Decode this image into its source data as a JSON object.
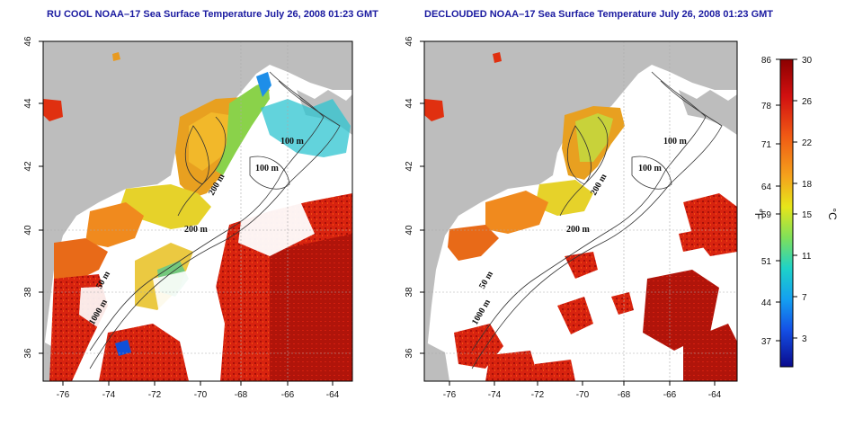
{
  "panels": [
    {
      "title": "RU COOL NOAA–17 Sea Surface Temperature July 26, 2008 01:23 GMT",
      "x_ticks": [
        "-76",
        "-74",
        "-72",
        "-70",
        "-68",
        "-66",
        "-64"
      ],
      "y_ticks": [
        "46",
        "44",
        "42",
        "40",
        "38",
        "36"
      ],
      "contour_labels": [
        "100 m",
        "100 m",
        "200 m",
        "200 m",
        "50 m",
        "1000 m"
      ]
    },
    {
      "title": "DECLOUDED NOAA–17 Sea Surface Temperature July 26, 2008 01:23 GMT",
      "x_ticks": [
        "-76",
        "-74",
        "-72",
        "-70",
        "-68",
        "-66",
        "-64"
      ],
      "y_ticks": [
        "46",
        "44",
        "42",
        "40",
        "38",
        "36"
      ],
      "contour_labels": [
        "100 m",
        "100 m",
        "200 m",
        "200 m",
        "50 m",
        "1000 m"
      ]
    }
  ],
  "colorbar": {
    "fahrenheit_ticks": [
      "86",
      "78",
      "71",
      "64",
      "59",
      "51",
      "44",
      "37"
    ],
    "celsius_ticks": [
      "30",
      "26",
      "22",
      "18",
      "15",
      "11",
      "7",
      "3"
    ],
    "left_unit": "°F",
    "right_unit": "°C"
  },
  "colors": {
    "land": "#bdbdbd",
    "ocean_nodata": "#ffffff",
    "title": "#1a1aa0"
  }
}
